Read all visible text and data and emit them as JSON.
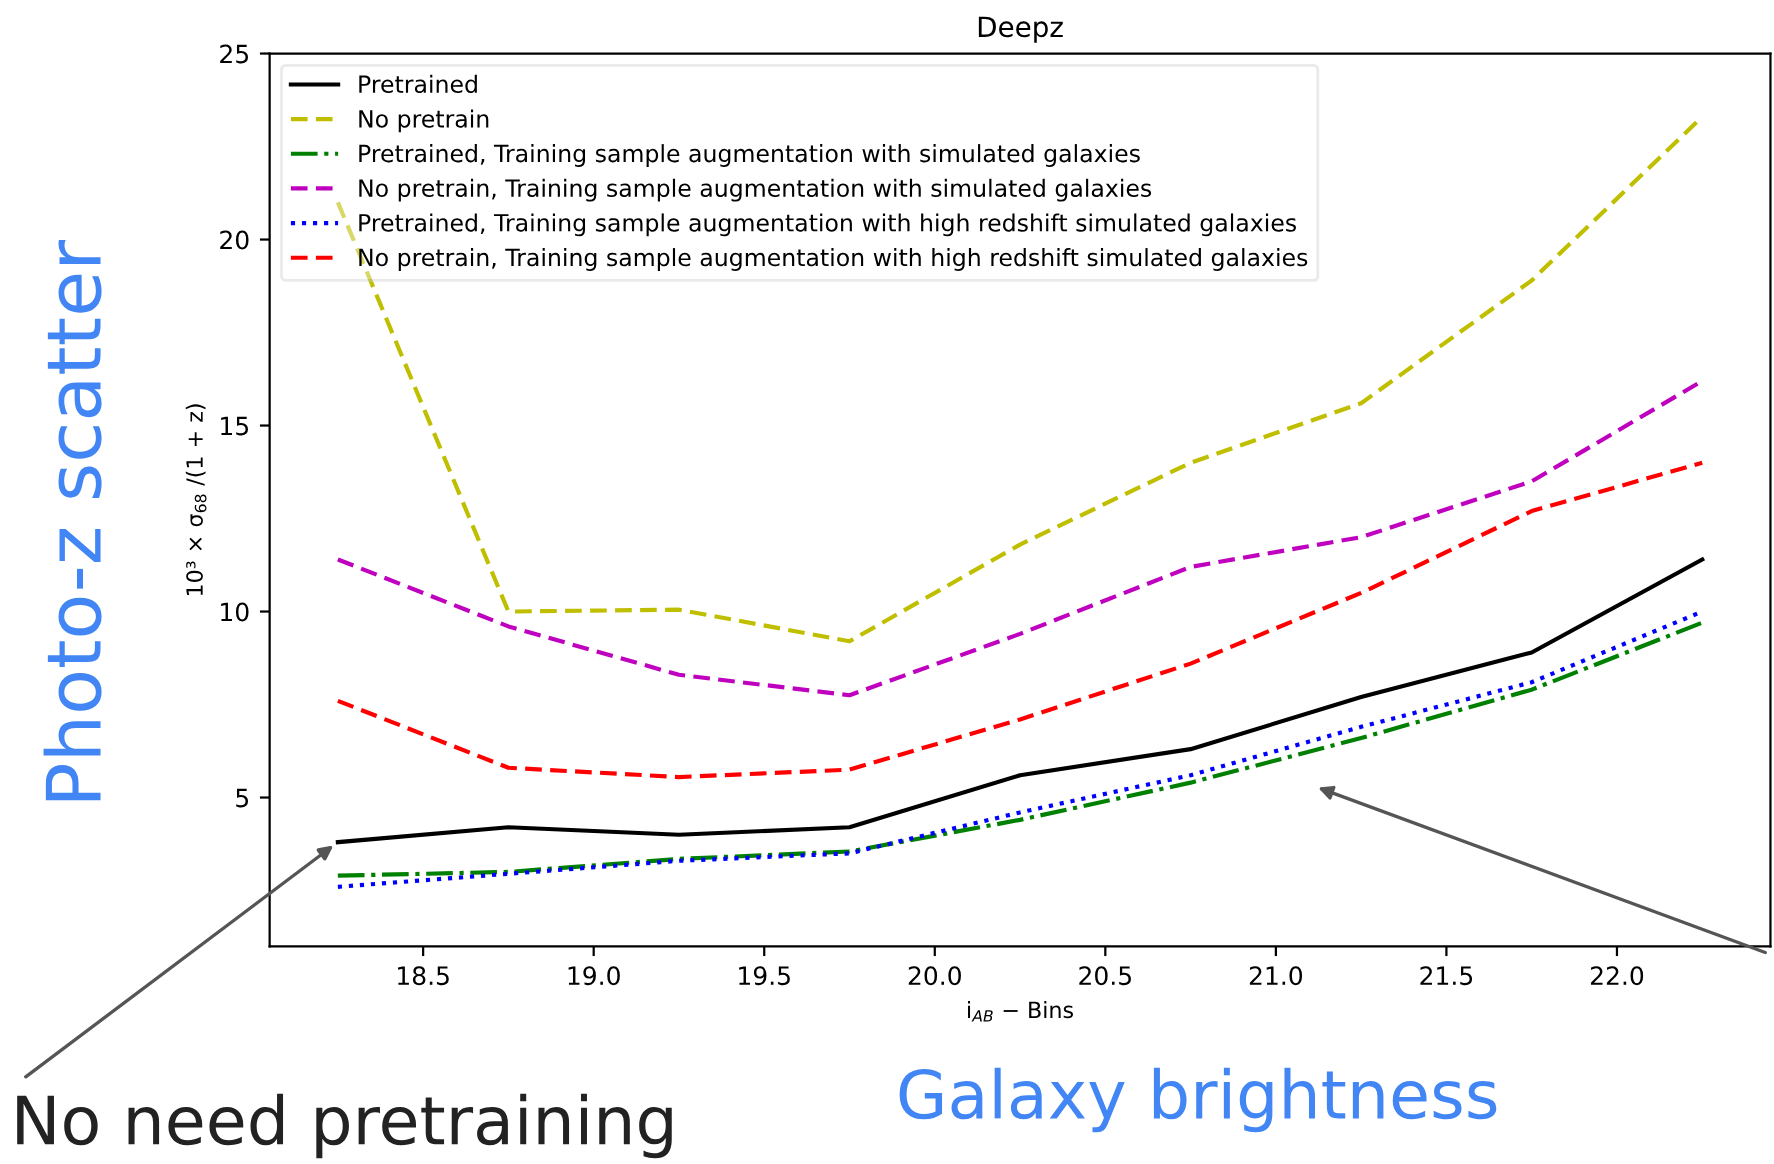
{
  "chart_data": {
    "type": "line",
    "title": "Deepz",
    "xlabel": "i$_{AB}$ − Bins",
    "ylabel": "10³ × σ$_{68}$ /(1 + z)",
    "x": [
      18.25,
      18.75,
      19.25,
      19.75,
      20.25,
      20.75,
      21.25,
      21.75,
      22.25
    ],
    "series": [
      {
        "name": "Pretrained",
        "color": "#000000",
        "line_style": "solid",
        "values": [
          3.8,
          4.2,
          4.0,
          4.2,
          5.6,
          6.3,
          7.7,
          8.9,
          11.4
        ]
      },
      {
        "name": "No pretrain",
        "color": "#bfbf00",
        "line_style": "dashed",
        "values": [
          21.0,
          10.0,
          10.05,
          9.2,
          11.8,
          14.0,
          15.6,
          18.9,
          23.3
        ]
      },
      {
        "name": "Pretrained, Training sample augmentation with simulated galaxies",
        "color": "#008000",
        "line_style": "dashdot",
        "values": [
          2.9,
          3.0,
          3.35,
          3.55,
          4.4,
          5.4,
          6.6,
          7.9,
          9.7
        ]
      },
      {
        "name": "No pretrain, Training sample augmentation with simulated galaxies",
        "color": "#bf00bf",
        "line_style": "dashed",
        "values": [
          11.4,
          9.6,
          8.3,
          7.75,
          9.4,
          11.2,
          12.0,
          13.5,
          16.2
        ]
      },
      {
        "name": "Pretrained, Training sample augmentation with high redshift simulated galaxies",
        "color": "#0000ff",
        "line_style": "dotted",
        "values": [
          2.6,
          2.95,
          3.3,
          3.5,
          4.6,
          5.6,
          6.9,
          8.1,
          10.0
        ]
      },
      {
        "name": "No pretrain, Training sample augmentation with high redshift simulated galaxies",
        "color": "#ff0000",
        "line_style": "dashed",
        "values": [
          7.6,
          5.8,
          5.55,
          5.75,
          7.1,
          8.6,
          10.5,
          12.7,
          14.0
        ]
      }
    ],
    "xlim": [
      18.05,
      22.45
    ],
    "ylim": [
      1.0,
      25
    ],
    "xticks": [
      18.5,
      {
        "value": 19,
        "label": "19.0"
      },
      19.5,
      {
        "value": 20,
        "label": "20.0"
      },
      20.5,
      {
        "value": 21,
        "label": "21.0"
      },
      21.5,
      {
        "value": 22,
        "label": "22.0"
      }
    ],
    "yticks": [
      5,
      10,
      15,
      20,
      25
    ],
    "grid": false,
    "legend": "top left",
    "annotations": [
      "Photo-z scatter",
      "Galaxy brightness",
      {
        "text": "No need pretraining",
        "x": 18.25,
        "y": 3.8
      }
    ]
  }
}
